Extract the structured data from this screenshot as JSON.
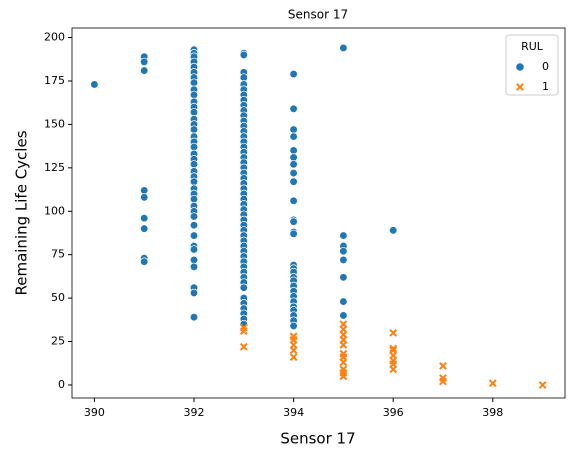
{
  "chart_data": {
    "type": "scatter",
    "title": "Sensor 17",
    "xlabel": "Sensor 17",
    "ylabel": "Remaining Life Cycles",
    "xlim": [
      389.55,
      399.45
    ],
    "ylim": [
      -7.5,
      205.5
    ],
    "xticks": [
      390,
      392,
      394,
      396,
      398
    ],
    "yticks": [
      0,
      25,
      50,
      75,
      100,
      125,
      150,
      175,
      200
    ],
    "legend_title": "RUL",
    "legend": "upper right",
    "series": [
      {
        "name": "0",
        "color": "#1f77b4",
        "marker": "circle",
        "x": [
          390,
          391,
          391,
          391,
          391,
          391,
          391,
          391,
          391,
          391,
          392,
          392,
          392,
          392,
          392,
          392,
          392,
          392,
          392,
          392,
          392,
          392,
          392,
          392,
          392,
          392,
          392,
          392,
          392,
          392,
          392,
          392,
          392,
          392,
          392,
          392,
          392,
          392,
          392,
          392,
          392,
          392,
          392,
          392,
          392,
          392,
          392,
          392,
          392,
          392,
          393,
          393,
          393,
          393,
          393,
          393,
          393,
          393,
          393,
          393,
          393,
          393,
          393,
          393,
          393,
          393,
          393,
          393,
          393,
          393,
          393,
          393,
          393,
          393,
          393,
          393,
          393,
          393,
          393,
          393,
          393,
          393,
          393,
          393,
          393,
          393,
          393,
          393,
          393,
          393,
          393,
          393,
          393,
          393,
          393,
          393,
          393,
          393,
          393,
          393,
          394,
          394,
          394,
          394,
          394,
          394,
          394,
          394,
          394,
          394,
          394,
          394,
          394,
          394,
          394,
          394,
          394,
          394,
          394,
          394,
          394,
          394,
          394,
          394,
          394,
          394,
          394,
          394,
          395,
          395,
          395,
          395,
          395,
          395,
          395,
          395,
          396
        ],
        "values": [
          173,
          189,
          186,
          181,
          112,
          108,
          96,
          90,
          73,
          71,
          193,
          191,
          189,
          186,
          183,
          180,
          177,
          174,
          170,
          167,
          163,
          160,
          157,
          153,
          150,
          147,
          143,
          140,
          137,
          133,
          130,
          127,
          123,
          120,
          117,
          113,
          110,
          107,
          103,
          100,
          97,
          92,
          86,
          80,
          78,
          72,
          68,
          56,
          53,
          39,
          191,
          190,
          180,
          177,
          173,
          170,
          167,
          164,
          161,
          158,
          155,
          152,
          149,
          146,
          143,
          140,
          137,
          134,
          131,
          128,
          125,
          122,
          119,
          116,
          113,
          110,
          107,
          104,
          101,
          98,
          95,
          92,
          89,
          86,
          83,
          80,
          77,
          74,
          71,
          68,
          65,
          62,
          59,
          56,
          50,
          47,
          44,
          41,
          38,
          35,
          179,
          159,
          147,
          143,
          135,
          131,
          127,
          122,
          117,
          106,
          95,
          94,
          88,
          87,
          69,
          67,
          65,
          62,
          60,
          57,
          54,
          51,
          48,
          45,
          43,
          40,
          37,
          34,
          194,
          86,
          80,
          77,
          72,
          62,
          48,
          40,
          89
        ]
      },
      {
        "name": "1",
        "color": "#ff7f0e",
        "marker": "x",
        "x": [
          393,
          393,
          393,
          394,
          394,
          394,
          394,
          394,
          395,
          395,
          395,
          395,
          395,
          395,
          395,
          395,
          395,
          395,
          395,
          396,
          396,
          396,
          396,
          396,
          396,
          396,
          397,
          397,
          397,
          398,
          399
        ],
        "values": [
          33,
          31,
          22,
          28,
          26,
          23,
          20,
          16,
          35,
          32,
          29,
          26,
          23,
          18,
          16,
          13,
          9,
          7,
          5,
          30,
          21,
          20,
          17,
          14,
          12,
          9,
          11,
          4,
          2,
          1,
          0
        ]
      }
    ]
  }
}
